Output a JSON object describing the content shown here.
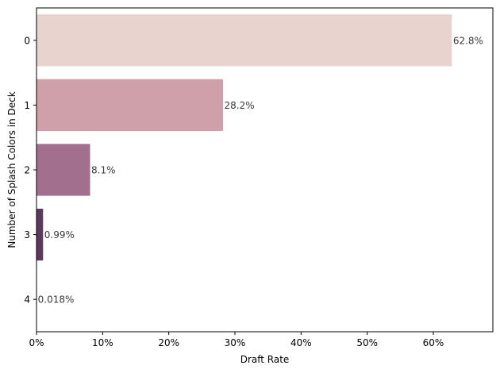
{
  "chart_data": {
    "type": "bar",
    "orientation": "horizontal",
    "title": "",
    "xlabel": "Draft Rate",
    "ylabel": "Number of Splash Colors in Deck",
    "categories": [
      "0",
      "1",
      "2",
      "3",
      "4"
    ],
    "values": [
      62.8,
      28.2,
      8.1,
      0.99,
      0.018
    ],
    "data_labels": [
      "62.8%",
      "28.2%",
      "8.1%",
      "0.99%",
      "0.018%"
    ],
    "colors": [
      "#e8d3cf",
      "#d0a0aa",
      "#a26f8e",
      "#5c3a5e",
      "#2d1e3e"
    ],
    "xlim": [
      0,
      69
    ],
    "xticks": [
      0,
      10,
      20,
      30,
      40,
      50,
      60
    ],
    "xtick_labels": [
      "0%",
      "10%",
      "20%",
      "30%",
      "40%",
      "50%",
      "60%"
    ],
    "grid": false,
    "legend": "none"
  }
}
